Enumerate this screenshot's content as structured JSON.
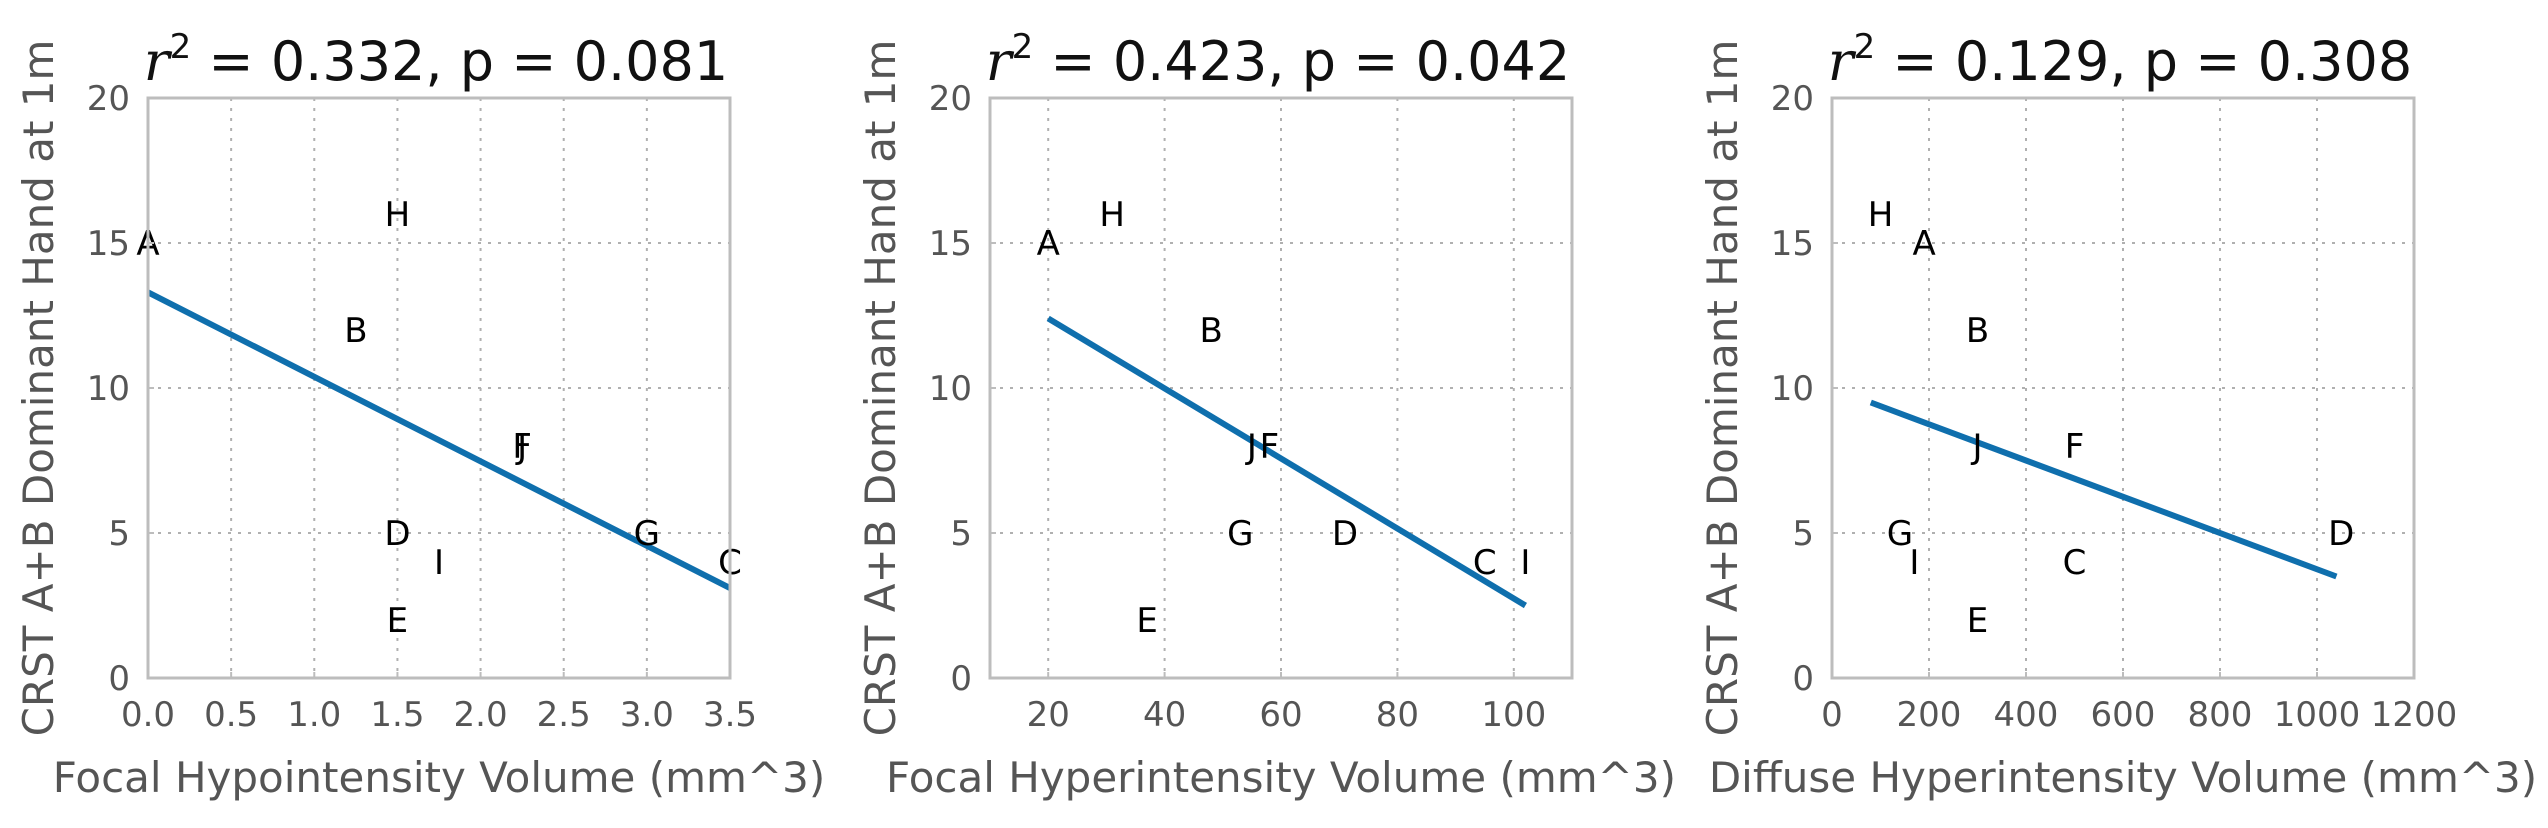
{
  "chart_data": [
    {
      "type": "scatter",
      "title": "r² = 0.332, p = 0.081",
      "title_stat": " = 0.332, p = 0.081",
      "xlabel": "Focal Hypointensity Volume (mm^3)",
      "ylabel": "CRST A+B Dominant Hand at 1m",
      "xlim": [
        0,
        3.5
      ],
      "ylim": [
        0,
        20
      ],
      "xticks": [
        0,
        0.5,
        1,
        1.5,
        2,
        2.5,
        3,
        3.5
      ],
      "xtick_labels": [
        "0.0",
        "0.5",
        "1.0",
        "1.5",
        "2.0",
        "2.5",
        "3.0",
        "3.5"
      ],
      "yticks": [
        0,
        5,
        10,
        15,
        20
      ],
      "ytick_labels": [
        "0",
        "5",
        "10",
        "15",
        "20"
      ],
      "grid": true,
      "points": [
        {
          "label": "A",
          "x": 0.0,
          "y": 15
        },
        {
          "label": "H",
          "x": 1.5,
          "y": 16
        },
        {
          "label": "B",
          "x": 1.25,
          "y": 12
        },
        {
          "label": "F",
          "x": 2.25,
          "y": 8
        },
        {
          "label": "J",
          "x": 2.25,
          "y": 8
        },
        {
          "label": "D",
          "x": 1.5,
          "y": 5
        },
        {
          "label": "G",
          "x": 3.0,
          "y": 5
        },
        {
          "label": "I",
          "x": 1.75,
          "y": 4
        },
        {
          "label": "C",
          "x": 3.5,
          "y": 4
        },
        {
          "label": "E",
          "x": 1.5,
          "y": 2
        }
      ],
      "fit_line": {
        "x": [
          0.0,
          3.5
        ],
        "y": [
          13.3,
          3.1
        ]
      }
    },
    {
      "type": "scatter",
      "title": "r² = 0.423, p = 0.042",
      "title_stat": " = 0.423, p = 0.042",
      "xlabel": "Focal Hyperintensity Volume (mm^3)",
      "ylabel": "CRST A+B Dominant Hand at 1m",
      "xlim": [
        10,
        110
      ],
      "ylim": [
        0,
        20
      ],
      "xticks": [
        20,
        40,
        60,
        80,
        100
      ],
      "xtick_labels": [
        "20",
        "40",
        "60",
        "80",
        "100"
      ],
      "yticks": [
        0,
        5,
        10,
        15,
        20
      ],
      "ytick_labels": [
        "0",
        "5",
        "10",
        "15",
        "20"
      ],
      "grid": true,
      "points": [
        {
          "label": "A",
          "x": 20,
          "y": 15
        },
        {
          "label": "H",
          "x": 31,
          "y": 16
        },
        {
          "label": "B",
          "x": 48,
          "y": 12
        },
        {
          "label": "J",
          "x": 55,
          "y": 8
        },
        {
          "label": "F",
          "x": 58,
          "y": 8
        },
        {
          "label": "G",
          "x": 53,
          "y": 5
        },
        {
          "label": "D",
          "x": 71,
          "y": 5
        },
        {
          "label": "C",
          "x": 95,
          "y": 4
        },
        {
          "label": "I",
          "x": 102,
          "y": 4
        },
        {
          "label": "E",
          "x": 37,
          "y": 2
        }
      ],
      "fit_line": {
        "x": [
          20,
          102
        ],
        "y": [
          12.4,
          2.5
        ]
      }
    },
    {
      "type": "scatter",
      "title": "r² = 0.129, p = 0.308",
      "title_stat": " = 0.129, p = 0.308",
      "xlabel": "Diffuse Hyperintensity Volume (mm^3)",
      "ylabel": "CRST A+B Dominant Hand at 1m",
      "xlim": [
        0,
        1200
      ],
      "ylim": [
        0,
        20
      ],
      "xticks": [
        0,
        200,
        400,
        600,
        800,
        1000,
        1200
      ],
      "xtick_labels": [
        "0",
        "200",
        "400",
        "600",
        "800",
        "1000",
        "1200"
      ],
      "yticks": [
        0,
        5,
        10,
        15,
        20
      ],
      "ytick_labels": [
        "0",
        "5",
        "10",
        "15",
        "20"
      ],
      "grid": true,
      "points": [
        {
          "label": "H",
          "x": 100,
          "y": 16
        },
        {
          "label": "A",
          "x": 190,
          "y": 15
        },
        {
          "label": "B",
          "x": 300,
          "y": 12
        },
        {
          "label": "J",
          "x": 300,
          "y": 8
        },
        {
          "label": "F",
          "x": 500,
          "y": 8
        },
        {
          "label": "G",
          "x": 140,
          "y": 5
        },
        {
          "label": "I",
          "x": 170,
          "y": 4
        },
        {
          "label": "C",
          "x": 500,
          "y": 4
        },
        {
          "label": "D",
          "x": 1050,
          "y": 5
        },
        {
          "label": "E",
          "x": 300,
          "y": 2
        }
      ],
      "fit_line": {
        "x": [
          80,
          1040
        ],
        "y": [
          9.5,
          3.5
        ]
      }
    }
  ]
}
